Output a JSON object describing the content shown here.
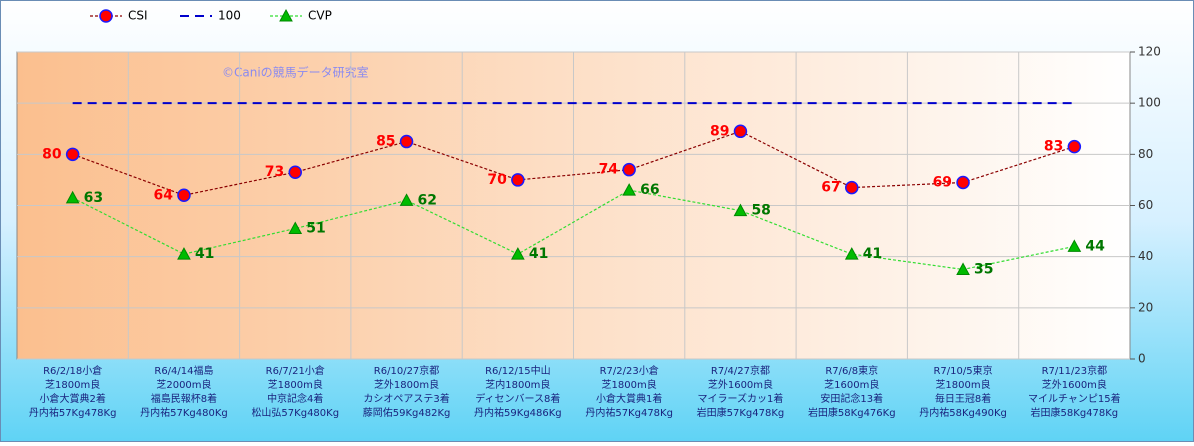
{
  "chart_data": {
    "type": "line",
    "watermark": "©Caniの競馬データ研究室",
    "categories": [
      [
        "R6/2/18小倉",
        "芝1800m良",
        "小倉大賞典2着",
        "丹内祐57Kg478Kg"
      ],
      [
        "R6/4/14福島",
        "芝2000m良",
        "福島民報杯8着",
        "丹内祐57Kg480Kg"
      ],
      [
        "R6/7/21小倉",
        "芝1800m良",
        "中京記念4着",
        "松山弘57Kg480Kg"
      ],
      [
        "R6/10/27京都",
        "芝外1800m良",
        "カシオペアステ3着",
        "藤岡佑59Kg482Kg"
      ],
      [
        "R6/12/15中山",
        "芝内1800m良",
        "ディセンバース8着",
        "丹内祐59Kg486Kg"
      ],
      [
        "R7/2/23小倉",
        "芝1800m良",
        "小倉大賞典1着",
        "丹内祐57Kg478Kg"
      ],
      [
        "R7/4/27京都",
        "芝外1600m良",
        "マイラーズカッ1着",
        "岩田康57Kg478Kg"
      ],
      [
        "R7/6/8東京",
        "芝1600m良",
        "安田記念13着",
        "岩田康58Kg476Kg"
      ],
      [
        "R7/10/5東京",
        "芝1800m良",
        "毎日王冠8着",
        "丹内祐58Kg490Kg"
      ],
      [
        "R7/11/23京都",
        "芝外1600m良",
        "マイルチャンピ15着",
        "岩田康58Kg478Kg"
      ]
    ],
    "series": [
      {
        "name": "CSI",
        "color": "#8b0000",
        "marker": "circle",
        "marker_fill": "#ff0000",
        "marker_edge": "#1a1aff",
        "label_color": "#ff0000",
        "label_side": "left",
        "dash": "3,2",
        "values": [
          80,
          64,
          73,
          85,
          70,
          74,
          89,
          67,
          69,
          83
        ]
      },
      {
        "name": "100",
        "color": "#0000cc",
        "marker": "none",
        "dash": "9,6",
        "values": [
          100,
          100,
          100,
          100,
          100,
          100,
          100,
          100,
          100,
          100
        ]
      },
      {
        "name": "CVP",
        "color": "#33dd33",
        "marker": "triangle",
        "marker_fill": "#00bb00",
        "marker_edge": "#008800",
        "label_color": "#007700",
        "label_side": "right",
        "dash": "3,2",
        "values": [
          63,
          41,
          51,
          62,
          41,
          66,
          58,
          41,
          35,
          44
        ]
      }
    ],
    "ylim": [
      0,
      120
    ],
    "yticks": [
      0,
      20,
      40,
      60,
      80,
      100,
      120
    ],
    "grid": true
  }
}
